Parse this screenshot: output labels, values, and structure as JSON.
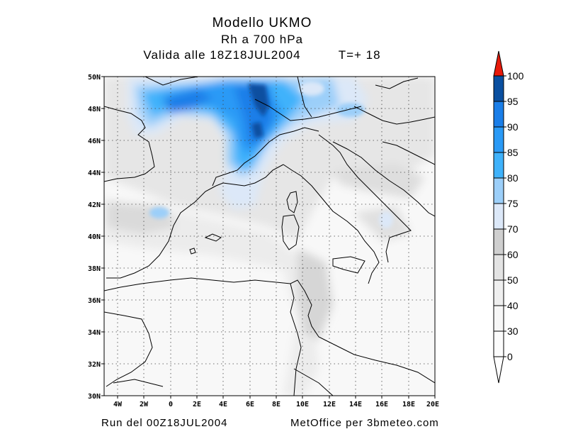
{
  "header": {
    "model": "Modello UKMO",
    "field": "Rh a 700 hPa",
    "valid_label": "Valida alle 18Z18JUL2004",
    "step": "T=+ 18"
  },
  "footer": {
    "run": "Run del 00Z18JUL2004",
    "credit": "MetOffice per 3bmeteo.com"
  },
  "map": {
    "lat_labels": [
      "50N",
      "48N",
      "46N",
      "44N",
      "42N",
      "40N",
      "38N",
      "36N",
      "34N",
      "32N",
      "30N"
    ],
    "lon_labels": [
      "4W",
      "2W",
      "0",
      "2E",
      "4E",
      "6E",
      "8E",
      "10E",
      "12E",
      "14E",
      "16E",
      "18E",
      "20E"
    ],
    "lat_range": [
      30,
      50
    ],
    "lon_range": [
      -5,
      20
    ]
  },
  "colorbar": {
    "levels": [
      "100",
      "95",
      "90",
      "85",
      "80",
      "75",
      "70",
      "60",
      "50",
      "40",
      "30",
      "0"
    ],
    "colors": [
      "#0a4fa0",
      "#1a7ee8",
      "#2a9af6",
      "#3fb2fb",
      "#9ccff9",
      "#dce8f8",
      "#cfcfcf",
      "#e3e3e3",
      "#efefef",
      "#f7f7f7",
      "#fcfcfc",
      "#ffffff"
    ],
    "top_arrow_color": "#e81a0a"
  }
}
